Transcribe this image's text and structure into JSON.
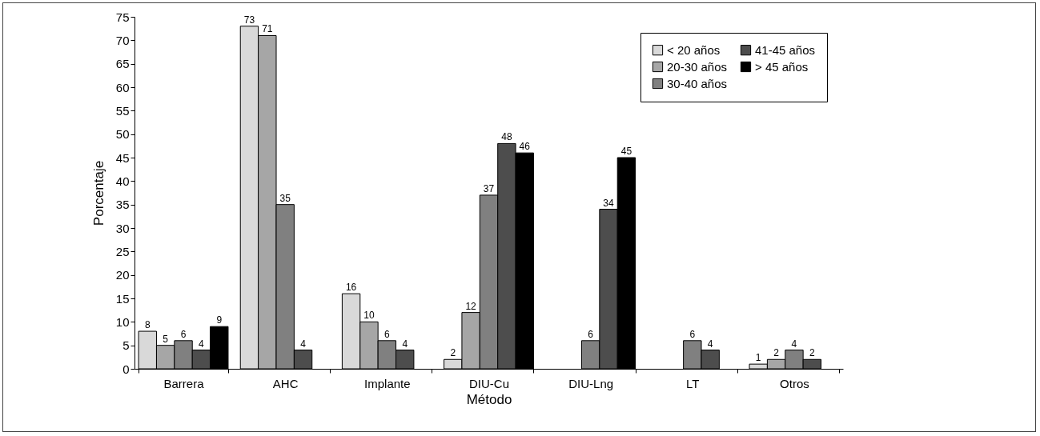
{
  "chart_data": {
    "type": "bar",
    "xlabel": "Método",
    "ylabel": "Porcentaje",
    "categories": [
      "Barrera",
      "AHC",
      "Implante",
      "DIU-Cu",
      "DIU-Lng",
      "LT",
      "Otros"
    ],
    "series": [
      {
        "name": "< 20 años",
        "color": "#d9d9d9",
        "values": [
          8,
          73,
          16,
          2,
          null,
          null,
          1
        ]
      },
      {
        "name": "20-30 años",
        "color": "#a6a6a6",
        "values": [
          5,
          71,
          10,
          12,
          null,
          null,
          2
        ]
      },
      {
        "name": "30-40 años",
        "color": "#808080",
        "values": [
          6,
          35,
          6,
          37,
          6,
          6,
          4
        ]
      },
      {
        "name": "41-45 años",
        "color": "#4d4d4d",
        "values": [
          4,
          4,
          4,
          48,
          34,
          4,
          2
        ]
      },
      {
        "name": "> 45 años",
        "color": "#000000",
        "values": [
          9,
          null,
          null,
          46,
          45,
          null,
          null
        ]
      }
    ],
    "ylim": [
      0,
      75
    ],
    "yticks": [
      0,
      5,
      10,
      15,
      20,
      25,
      30,
      35,
      40,
      45,
      50,
      55,
      60,
      65,
      70,
      75
    ],
    "grid": false,
    "legend": "top right",
    "data_labels": true
  }
}
